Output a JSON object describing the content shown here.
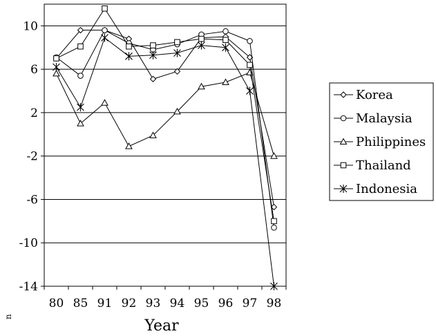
{
  "chart_data": {
    "type": "line",
    "title": "",
    "xlabel": "Year",
    "ylabel": "",
    "categories": [
      "80",
      "85",
      "91",
      "92",
      "93",
      "94",
      "95",
      "96",
      "97",
      "98"
    ],
    "ylim": [
      -14,
      12
    ],
    "yticks": [
      10,
      6,
      2,
      -2,
      -6,
      -10,
      -14
    ],
    "grid": "horizontal",
    "legend_position": "right",
    "series": [
      {
        "name": "Korea",
        "marker": "diamond",
        "values": [
          7.0,
          9.6,
          9.6,
          8.8,
          5.1,
          5.8,
          8.9,
          9.0,
          7.1,
          -6.7
        ]
      },
      {
        "name": "Malaysia",
        "marker": "circle",
        "values": [
          7.1,
          5.4,
          9.6,
          8.4,
          7.8,
          8.3,
          9.2,
          9.5,
          8.6,
          -8.6
        ]
      },
      {
        "name": "Philippines",
        "marker": "triangle",
        "values": [
          5.6,
          1.0,
          2.9,
          -1.1,
          -0.1,
          2.1,
          4.4,
          4.8,
          5.7,
          -2.0
        ]
      },
      {
        "name": "Thailand",
        "marker": "square",
        "values": [
          7.0,
          8.1,
          11.6,
          8.1,
          8.2,
          8.5,
          8.8,
          8.7,
          6.4,
          -8.0
        ]
      },
      {
        "name": "Indonesia",
        "marker": "asterisk",
        "values": [
          6.2,
          2.5,
          8.9,
          7.2,
          7.3,
          7.5,
          8.2,
          8.0,
          4.0,
          -14.0
        ]
      }
    ]
  },
  "stray_mark": "n"
}
